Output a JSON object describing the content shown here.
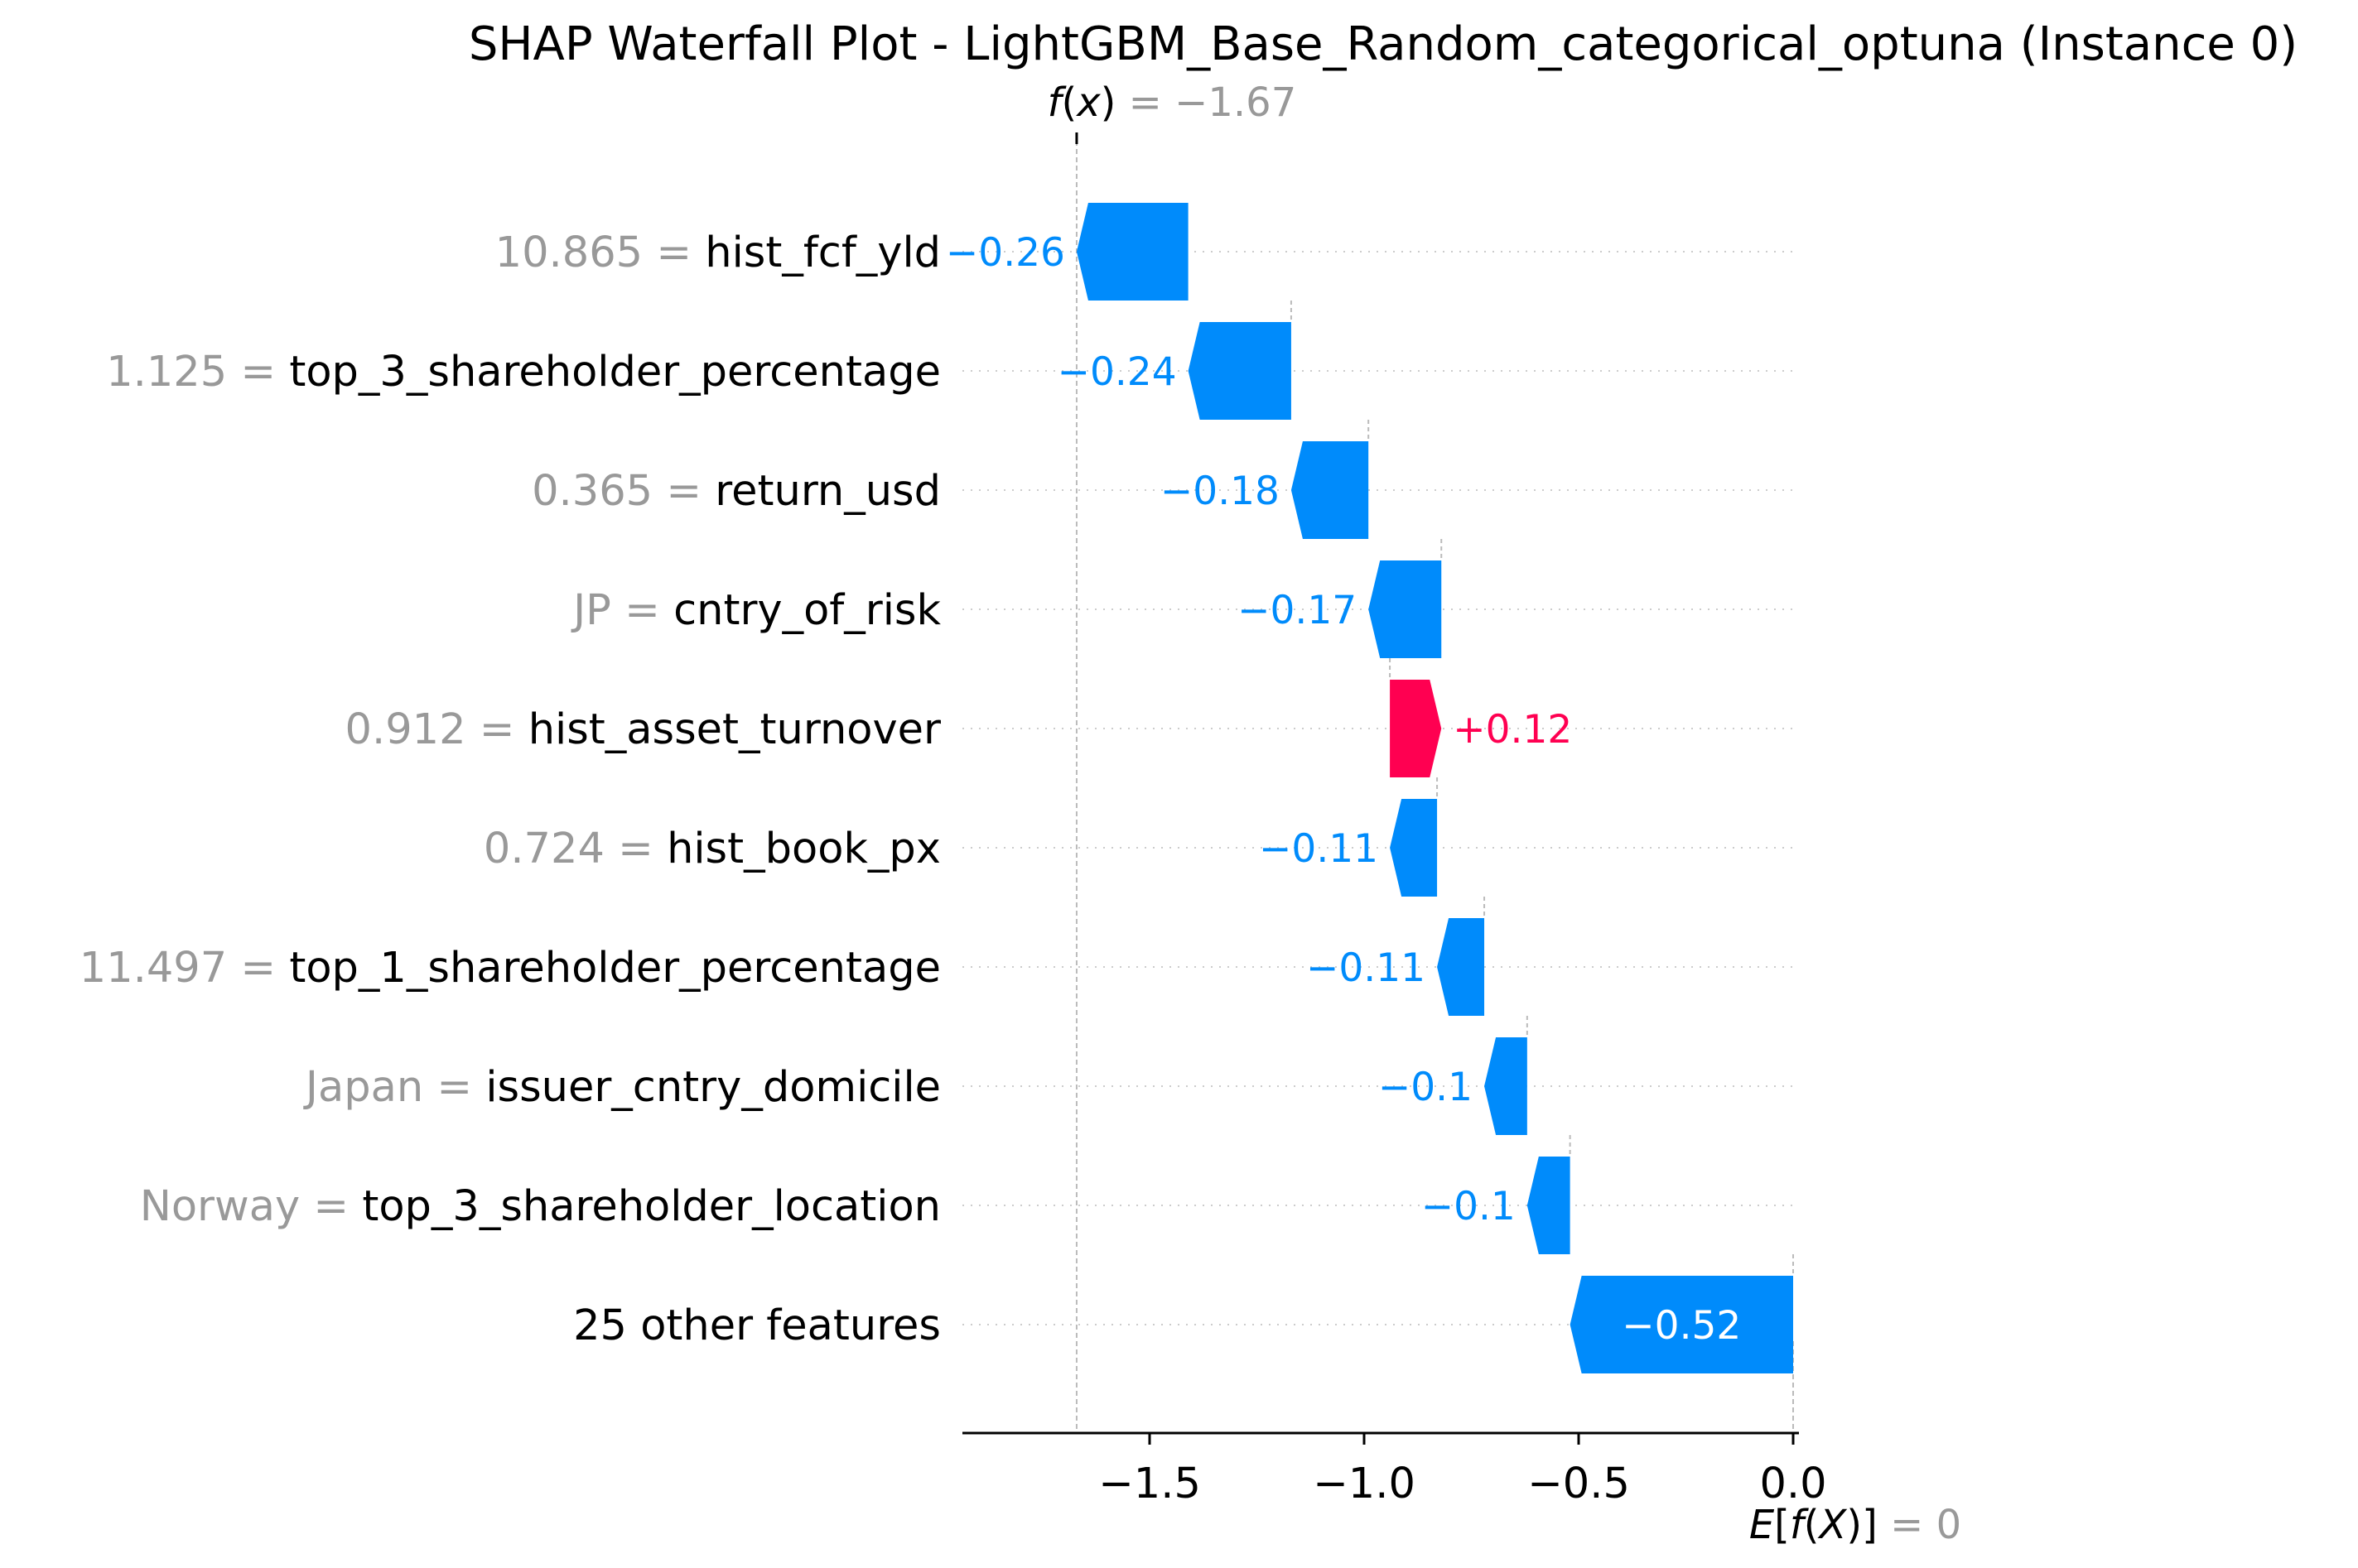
{
  "chart_data": {
    "type": "waterfall",
    "title": "SHAP Waterfall Plot - LightGBM_Base_Random_categorical_optuna (Instance 0)",
    "base_value": 0,
    "base_value_text": "0",
    "base_label_prefix": "E[f(X)]",
    "output_value": -1.67,
    "output_value_text": "−1.67",
    "output_label_prefix": "f(x)",
    "features": [
      {
        "value": "10.865",
        "name": "hist_fcf_yld",
        "shap": -0.26,
        "label": "−0.26"
      },
      {
        "value": "1.125",
        "name": "top_3_shareholder_percentage",
        "shap": -0.24,
        "label": "−0.24"
      },
      {
        "value": "0.365",
        "name": "return_usd",
        "shap": -0.18,
        "label": "−0.18"
      },
      {
        "value": "JP",
        "name": "cntry_of_risk",
        "shap": -0.17,
        "label": "−0.17"
      },
      {
        "value": "0.912",
        "name": "hist_asset_turnover",
        "shap": 0.12,
        "label": "+0.12"
      },
      {
        "value": "0.724",
        "name": "hist_book_px",
        "shap": -0.11,
        "label": "−0.11"
      },
      {
        "value": "11.497",
        "name": "top_1_shareholder_percentage",
        "shap": -0.11,
        "label": "−0.11"
      },
      {
        "value": "Japan",
        "name": "issuer_cntry_domicile",
        "shap": -0.1,
        "label": "−0.1"
      },
      {
        "value": "Norway",
        "name": "top_3_shareholder_location",
        "shap": -0.1,
        "label": "−0.1"
      },
      {
        "value": "",
        "name": "25 other features",
        "shap": -0.52,
        "label": "−0.52"
      }
    ],
    "xticks": [
      {
        "value": -1.5,
        "label": "−1.5"
      },
      {
        "value": -1.0,
        "label": "−1.0"
      },
      {
        "value": -0.5,
        "label": "−0.5"
      },
      {
        "value": 0.0,
        "label": "0.0"
      }
    ],
    "xlim": [
      -1.94,
      0.02
    ],
    "colors": {
      "positive": "#ff0051",
      "negative": "#008bfb",
      "grid": "#cccccc",
      "value_text": "#999999"
    }
  }
}
